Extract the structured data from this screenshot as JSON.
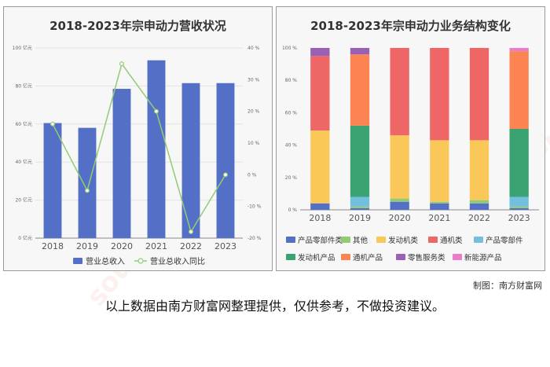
{
  "left_panel": {
    "title": "2018-2023年宗申动力营收状况"
  },
  "right_panel": {
    "title": "2018-2023年宗申动力业务结构变化"
  },
  "credit": "制图：南方财富网",
  "disclaimer": "以上数据由南方财富网整理提供，仅供参考，不做投资建议。",
  "watermark": {
    "text": "南方财富网",
    "url": "southmoney.com"
  },
  "chart_data": [
    {
      "type": "bar",
      "title": "2018-2023年宗申动力营收状况",
      "categories": [
        "2018",
        "2019",
        "2020",
        "2021",
        "2022",
        "2023"
      ],
      "series": [
        {
          "name": "营业总收入",
          "type": "bar",
          "axis": "left",
          "color": "#5470c6",
          "values": [
            60.5,
            58,
            78.5,
            93.5,
            81.5,
            81.5
          ]
        },
        {
          "name": "营业总收入同比",
          "type": "line",
          "axis": "right",
          "color": "#91cc75",
          "values": [
            16,
            -5,
            35,
            20,
            -18,
            0
          ]
        }
      ],
      "y_left": {
        "ticks": [
          "0 亿元",
          "20 亿元",
          "40 亿元",
          "60 亿元",
          "80 亿元",
          "100 亿元"
        ],
        "min": 0,
        "max": 100
      },
      "y_right": {
        "ticks": [
          "-20 %",
          "-10 %",
          "0 %",
          "10 %",
          "20 %",
          "30 %",
          "40 %"
        ],
        "min": -20,
        "max": 40
      },
      "legend": "bottom",
      "grid": true
    },
    {
      "type": "bar",
      "stacked": true,
      "title": "2018-2023年宗申动力业务结构变化",
      "categories": [
        "2018",
        "2019",
        "2020",
        "2021",
        "2022",
        "2023"
      ],
      "series": [
        {
          "name": "产品零部件类",
          "color": "#5470c6",
          "values": [
            4,
            1,
            5,
            4,
            4,
            1
          ]
        },
        {
          "name": "其他",
          "color": "#91cc75",
          "values": [
            0,
            1,
            2,
            1,
            2,
            1
          ]
        },
        {
          "name": "发动机类",
          "color": "#fac858",
          "values": [
            45,
            0,
            39,
            38,
            37,
            0
          ]
        },
        {
          "name": "通机类",
          "color": "#ee6666",
          "values": [
            46,
            0,
            54,
            57,
            57,
            0
          ]
        },
        {
          "name": "产品零部件",
          "color": "#73c0de",
          "values": [
            0,
            6,
            0,
            0,
            0,
            6
          ]
        },
        {
          "name": "发动机产品",
          "color": "#3ba272",
          "values": [
            0,
            44,
            0,
            0,
            0,
            42
          ]
        },
        {
          "name": "通机产品",
          "color": "#fc8452",
          "values": [
            0,
            44,
            0,
            0,
            0,
            48
          ]
        },
        {
          "name": "零售服务类",
          "color": "#9a60b4",
          "values": [
            5,
            4,
            0,
            0,
            0,
            0
          ]
        },
        {
          "name": "新能源产品",
          "color": "#ea7ccc",
          "values": [
            0,
            0,
            0,
            0,
            0,
            2
          ]
        }
      ],
      "y": {
        "ticks": [
          "0 %",
          "20 %",
          "40 %",
          "60 %",
          "80 %",
          "100 %"
        ],
        "min": 0,
        "max": 100
      },
      "legend": "bottom",
      "grid": false
    }
  ]
}
